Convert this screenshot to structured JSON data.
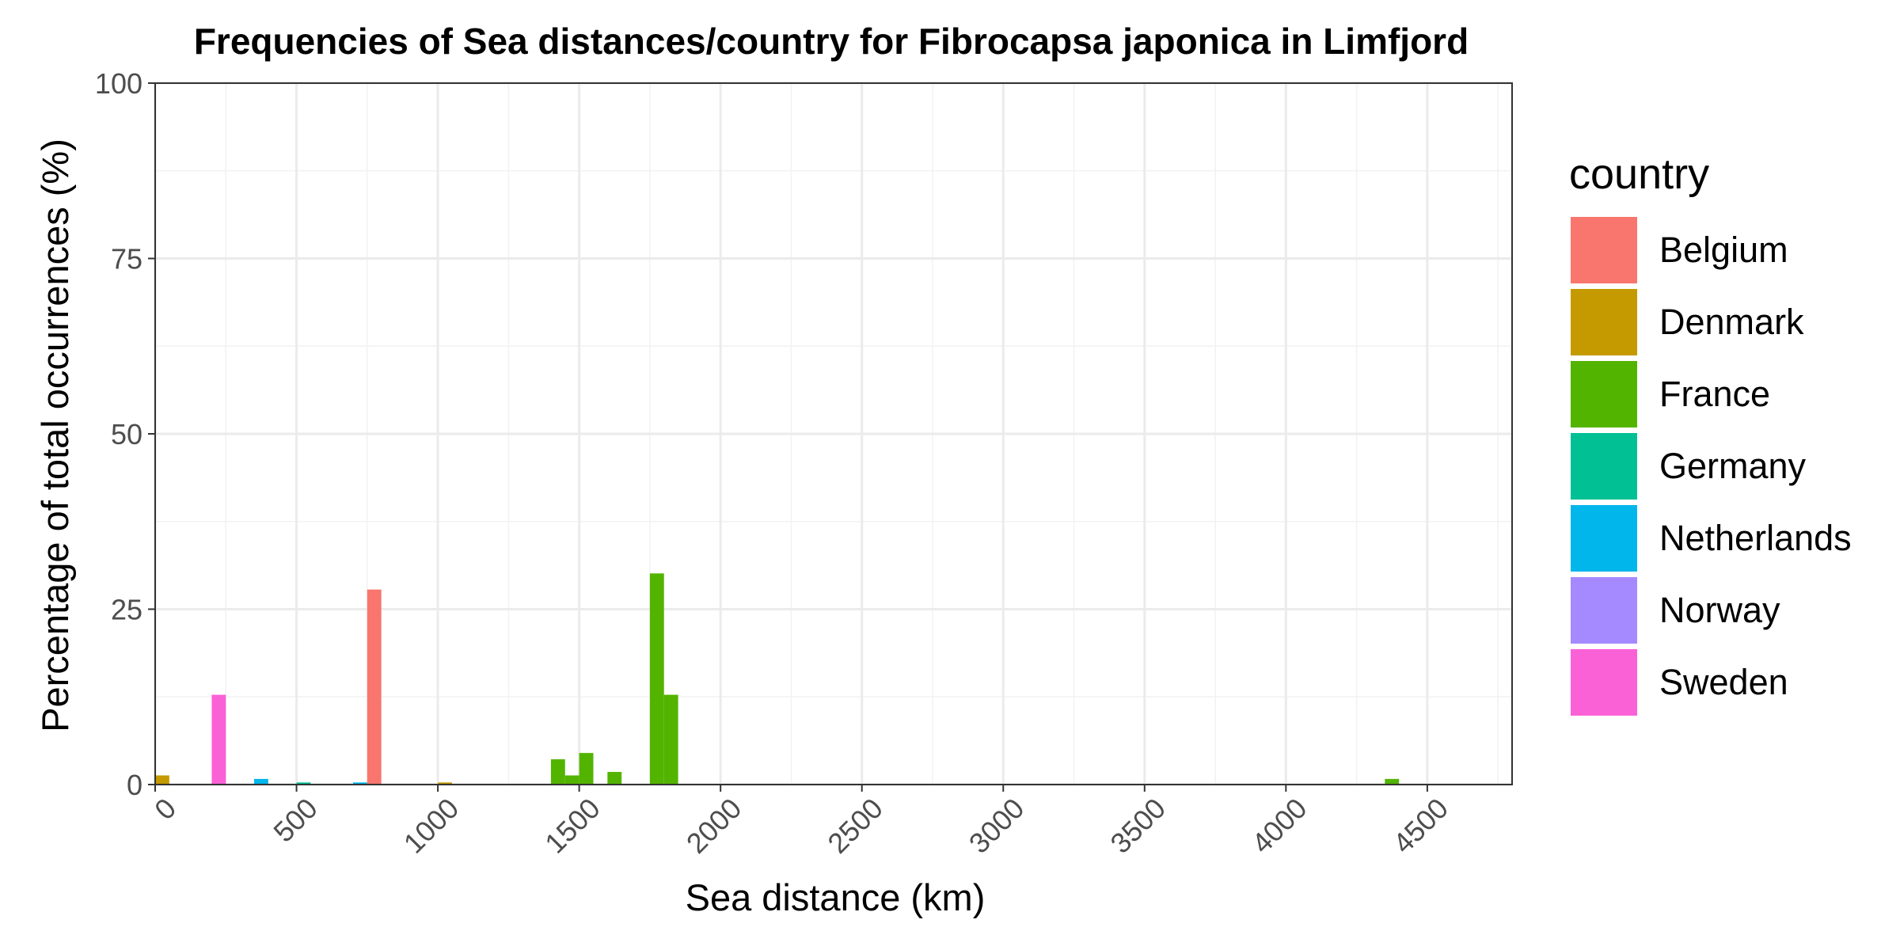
{
  "chart_data": {
    "type": "bar",
    "title": "Frequencies of Sea distances/country for Fibrocapsa japonica in Limfjord",
    "xlabel": "Sea distance (km)",
    "ylabel": "Percentage of total occurrences (%)",
    "xlim": [
      0,
      4800
    ],
    "ylim": [
      0,
      100
    ],
    "x_ticks": [
      0,
      500,
      1000,
      1500,
      2000,
      2500,
      3000,
      3500,
      4000,
      4500
    ],
    "y_ticks": [
      0,
      25,
      50,
      75,
      100
    ],
    "bin_width": 50,
    "grid": true,
    "legend_title": "country",
    "legend_position": "right",
    "series": [
      {
        "name": "Belgium",
        "color": "#F8766D",
        "bins": [
          {
            "x0": 750,
            "x1": 800,
            "value": 27.8
          }
        ]
      },
      {
        "name": "Denmark",
        "color": "#C49A00",
        "bins": [
          {
            "x0": 0,
            "x1": 50,
            "value": 1.3
          },
          {
            "x0": 1000,
            "x1": 1050,
            "value": 0.3
          }
        ]
      },
      {
        "name": "France",
        "color": "#53B400",
        "bins": [
          {
            "x0": 1400,
            "x1": 1450,
            "value": 3.6
          },
          {
            "x0": 1450,
            "x1": 1500,
            "value": 1.3
          },
          {
            "x0": 1500,
            "x1": 1550,
            "value": 4.5
          },
          {
            "x0": 1600,
            "x1": 1650,
            "value": 1.8
          },
          {
            "x0": 1750,
            "x1": 1800,
            "value": 30.1
          },
          {
            "x0": 1800,
            "x1": 1850,
            "value": 12.8
          },
          {
            "x0": 4350,
            "x1": 4400,
            "value": 0.8
          }
        ]
      },
      {
        "name": "Germany",
        "color": "#00C094",
        "bins": [
          {
            "x0": 500,
            "x1": 550,
            "value": 0.3
          }
        ]
      },
      {
        "name": "Netherlands",
        "color": "#00B6EB",
        "bins": [
          {
            "x0": 350,
            "x1": 400,
            "value": 0.8
          },
          {
            "x0": 700,
            "x1": 750,
            "value": 0.3
          }
        ]
      },
      {
        "name": "Norway",
        "color": "#A58AFF",
        "bins": []
      },
      {
        "name": "Sweden",
        "color": "#FB61D7",
        "bins": [
          {
            "x0": 200,
            "x1": 250,
            "value": 12.8
          }
        ]
      }
    ]
  }
}
